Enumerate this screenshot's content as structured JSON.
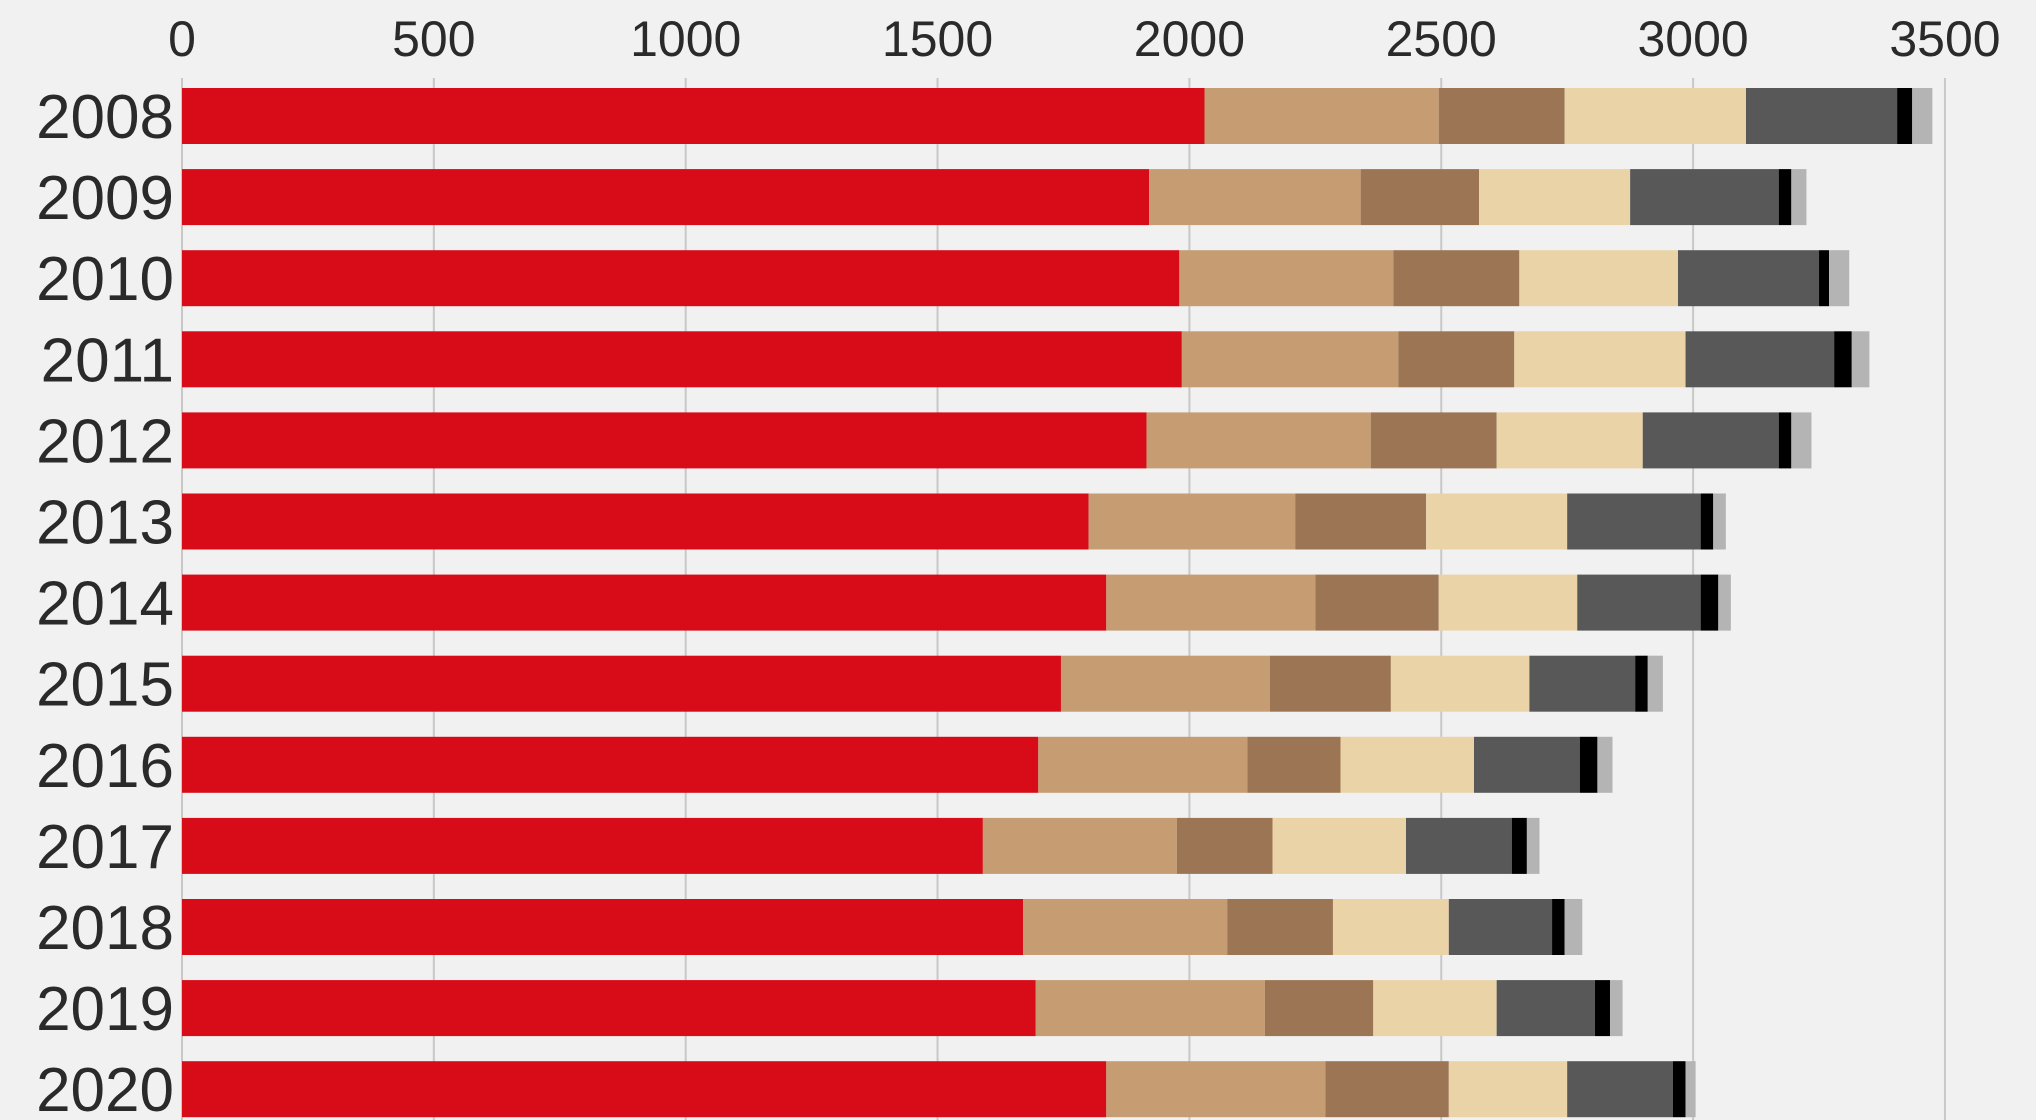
{
  "chart_data": {
    "type": "bar",
    "orientation": "horizontal",
    "stacked": true,
    "title": "",
    "xlabel": "",
    "ylabel": "",
    "xlim": [
      0,
      3500
    ],
    "x_ticks": [
      "0",
      "500",
      "1000",
      "1500",
      "2000",
      "2500",
      "3000",
      "3500"
    ],
    "x_tick_values": [
      0,
      500,
      1000,
      1500,
      2000,
      2500,
      3000,
      3500
    ],
    "x_axis_position": "top",
    "grid": true,
    "legend": "none",
    "categories": [
      "2008",
      "2009",
      "2010",
      "2011",
      "2012",
      "2013",
      "2014",
      "2015",
      "2016",
      "2017",
      "2018",
      "2019",
      "2020"
    ],
    "series_colors": [
      "#d70c18",
      "#c69c73",
      "#9c7654",
      "#ebd3a8",
      "#585858",
      "#000000",
      "#b4b4b4"
    ],
    "series": [
      {
        "values": [
          2030,
          1920,
          1980,
          1985,
          1915,
          1800,
          1835,
          1745,
          1700,
          1590,
          1670,
          1695,
          1835
        ]
      },
      {
        "values": [
          465,
          420,
          425,
          430,
          445,
          410,
          415,
          415,
          415,
          385,
          405,
          455,
          435
        ]
      },
      {
        "values": [
          250,
          235,
          250,
          230,
          250,
          260,
          245,
          240,
          185,
          190,
          210,
          215,
          245
        ]
      },
      {
        "values": [
          360,
          300,
          315,
          340,
          290,
          280,
          275,
          275,
          265,
          265,
          230,
          245,
          235
        ]
      },
      {
        "values": [
          300,
          295,
          280,
          295,
          270,
          265,
          245,
          210,
          210,
          210,
          205,
          195,
          210
        ]
      },
      {
        "values": [
          30,
          25,
          20,
          35,
          25,
          25,
          35,
          25,
          35,
          30,
          25,
          30,
          25
        ]
      },
      {
        "values": [
          40,
          30,
          40,
          35,
          40,
          25,
          25,
          30,
          30,
          25,
          35,
          25,
          20
        ]
      }
    ]
  }
}
